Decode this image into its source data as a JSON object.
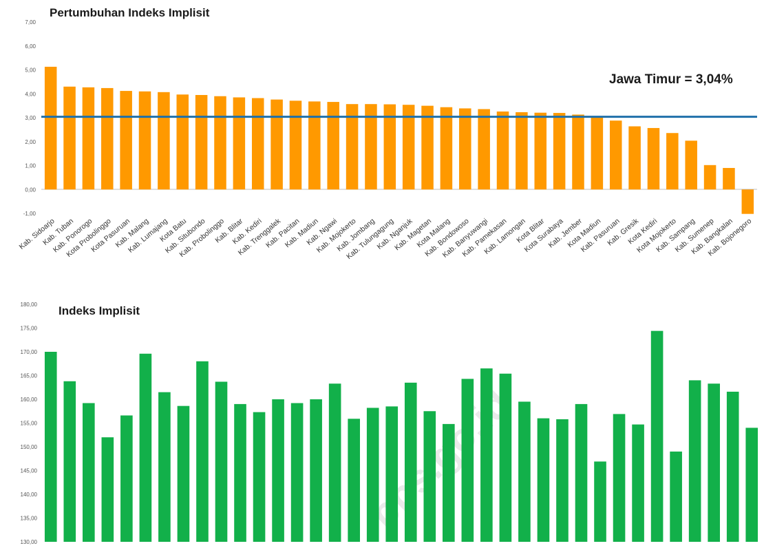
{
  "watermark": "bps.go.id",
  "chart_data": [
    {
      "type": "bar",
      "title": "Pertumbuhan Indeks Implisit",
      "color": "#ff9900",
      "ylim": [
        -1,
        7
      ],
      "yticks": [
        "-1,00",
        "0,00",
        "1,00",
        "2,00",
        "3,00",
        "4,00",
        "5,00",
        "6,00",
        "7,00"
      ],
      "categories": [
        "Kab. Sidoarjo",
        "Kab. Tuban",
        "Kab. Ponorogo",
        "Kota Probolinggo",
        "Kota Pasuruan",
        "Kab. Malang",
        "Kab. Lumajang",
        "Kota Batu",
        "Kab. Situbondo",
        "Kab. Probolinggo",
        "Kab. Blitar",
        "Kab. Kediri",
        "Kab. Trenggalek",
        "Kab. Pacitan",
        "Kab. Madiun",
        "Kab. Ngawi",
        "Kab. Mojokerto",
        "Kab. Jombang",
        "Kab. Tulungagung",
        "Kab. Nganjuk",
        "Kab. Magetan",
        "Kota Malang",
        "Kab. Bondowoso",
        "Kab. Banyuwangi",
        "Kab. Pamekasan",
        "Kab. Lamongan",
        "Kota Blitar",
        "Kota Surabaya",
        "Kab. Jember",
        "Kota Madiun",
        "Kab. Pasuruan",
        "Kab. Gresik",
        "Kota Kediri",
        "Kota Mojokerto",
        "Kab. Sampang",
        "Kab. Sumenep",
        "Kab. Bangkalan",
        "Kab. Bojonegoro"
      ],
      "values": [
        5.13,
        4.3,
        4.27,
        4.24,
        4.12,
        4.1,
        4.07,
        3.97,
        3.95,
        3.9,
        3.85,
        3.82,
        3.76,
        3.71,
        3.68,
        3.66,
        3.57,
        3.57,
        3.56,
        3.54,
        3.5,
        3.44,
        3.39,
        3.36,
        3.26,
        3.23,
        3.21,
        3.2,
        3.13,
        3.06,
        2.88,
        2.64,
        2.57,
        2.36,
        2.04,
        1.02,
        0.9,
        -1.02
      ],
      "reference": {
        "value": 3.04,
        "label": "Jawa Timur = 3,04%",
        "color": "#1f6faa"
      }
    },
    {
      "type": "bar",
      "title": "Indeks Implisit",
      "color": "#12b04a",
      "ylim": [
        130,
        180
      ],
      "yticks": [
        "130,00",
        "135,00",
        "140,00",
        "145,00",
        "150,00",
        "155,00",
        "160,00",
        "165,00",
        "170,00",
        "175,00",
        "180,00"
      ],
      "values": [
        170.0,
        163.8,
        159.2,
        152.0,
        156.6,
        169.6,
        161.5,
        158.6,
        168.0,
        163.7,
        159.0,
        157.3,
        160.0,
        159.2,
        160.0,
        163.3,
        155.9,
        158.2,
        158.5,
        163.5,
        157.5,
        154.8,
        164.3,
        166.5,
        165.4,
        159.5,
        156.0,
        155.8,
        159.0,
        146.9,
        156.9,
        154.7,
        174.4,
        149.0,
        164.0,
        163.3,
        161.6,
        154.0
      ]
    }
  ]
}
